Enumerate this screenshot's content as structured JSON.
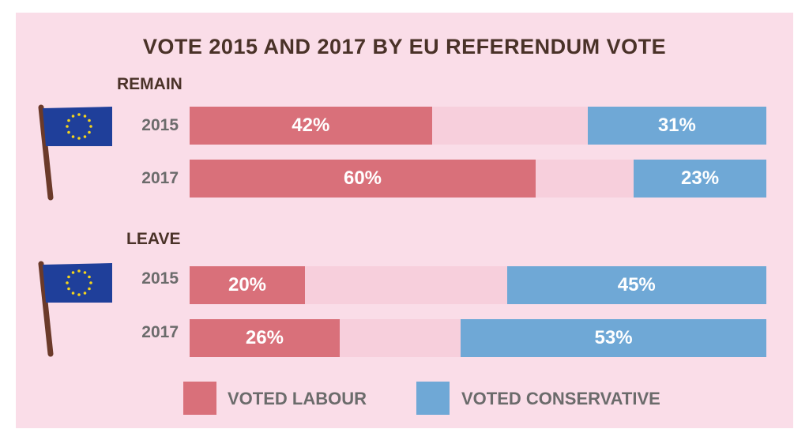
{
  "colors": {
    "labour": "#d9707a",
    "conservative": "#6fa8d6",
    "track": "#f7cfdc",
    "background": "#fadde8"
  },
  "chart_data": {
    "type": "bar",
    "title": "VOTE 2015 AND 2017 BY EU REFERENDUM VOTE",
    "groups": [
      {
        "name": "REMAIN",
        "rows": [
          {
            "year": "2015",
            "labour": 42,
            "conservative": 31,
            "labour_label": "42%",
            "conservative_label": "31%"
          },
          {
            "year": "2017",
            "labour": 60,
            "conservative": 23,
            "labour_label": "60%",
            "conservative_label": "23%"
          }
        ]
      },
      {
        "name": "LEAVE",
        "rows": [
          {
            "year": "2015",
            "labour": 20,
            "conservative": 45,
            "labour_label": "20%",
            "conservative_label": "45%"
          },
          {
            "year": "2017",
            "labour": 26,
            "conservative": 53,
            "labour_label": "26%",
            "conservative_label": "53%"
          }
        ]
      }
    ],
    "legend": [
      "VOTED LABOUR",
      "VOTED CONSERVATIVE"
    ],
    "xlim": [
      0,
      100
    ]
  }
}
